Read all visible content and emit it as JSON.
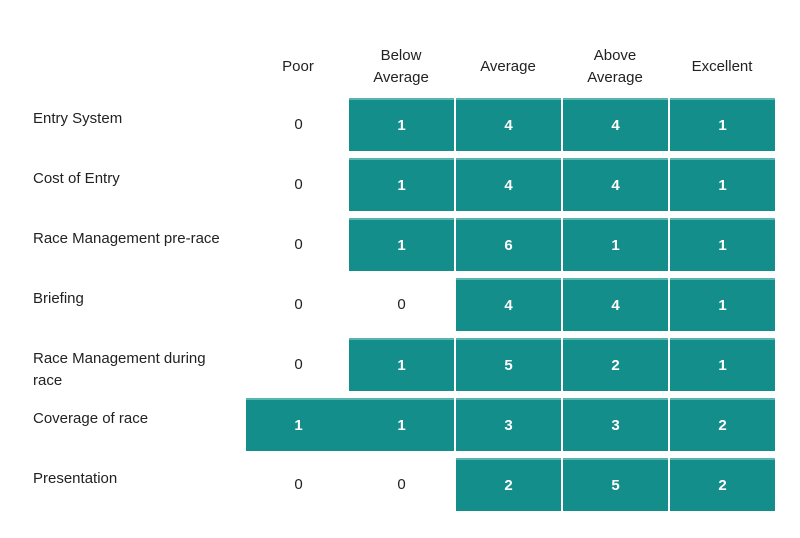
{
  "colors": {
    "filled": "#138e8a",
    "filled_top_edge": "#58b5b1",
    "text": "#222222",
    "filled_text": "#ffffff"
  },
  "chart_data": {
    "type": "table",
    "title": "",
    "columns": [
      "Poor",
      "Below\nAverage",
      "Average",
      "Above\nAverage",
      "Excellent"
    ],
    "rows": [
      {
        "label": "Entry System",
        "values": [
          0,
          1,
          4,
          4,
          1
        ]
      },
      {
        "label": "Cost of Entry",
        "values": [
          0,
          1,
          4,
          4,
          1
        ]
      },
      {
        "label": "Race Management pre-race",
        "values": [
          0,
          1,
          6,
          1,
          1
        ]
      },
      {
        "label": "Briefing",
        "values": [
          0,
          0,
          4,
          4,
          1
        ]
      },
      {
        "label": "Race Management during race",
        "values": [
          0,
          1,
          5,
          2,
          1
        ]
      },
      {
        "label": "Coverage of race",
        "values": [
          1,
          1,
          3,
          3,
          2
        ]
      },
      {
        "label": "Presentation",
        "values": [
          0,
          0,
          2,
          5,
          2
        ]
      }
    ],
    "highlight_rule": "cells with value > 0 are shaded"
  }
}
